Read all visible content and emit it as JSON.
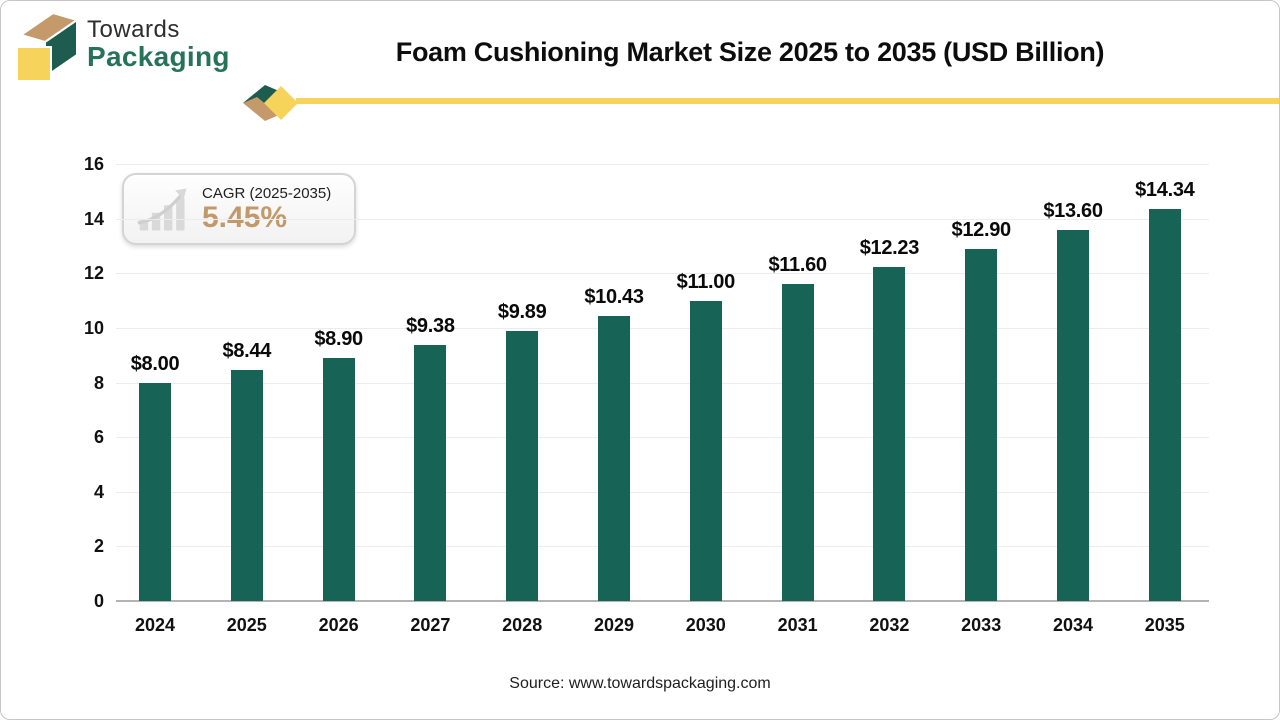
{
  "brand": {
    "line1": "Towards",
    "line2": "Packaging"
  },
  "header": {
    "title": "Foam Cushioning Market Size 2025 to 2035 (USD Billion)"
  },
  "cagr_badge": {
    "label": "CAGR (2025-2035)",
    "value": "5.45%"
  },
  "source": "Source: www.towardspackaging.com",
  "icons": {
    "logo": "cube-box-icon",
    "divider": "diamond-arrow-icon",
    "badge": "growth-bars-arrow-icon"
  },
  "colors": {
    "bar": "#176355",
    "accent_yellow": "#f6d45c",
    "brand_green": "#26735a",
    "logo_dark_green": "#1d5c4f",
    "logo_tan": "#c49a6b",
    "cagr_value": "#c2996a",
    "gridline": "#ececec",
    "axis_line": "#b3b3b3"
  },
  "chart_data": {
    "type": "bar",
    "title": "Foam Cushioning Market Size 2025 to 2035 (USD Billion)",
    "categories": [
      "2024",
      "2025",
      "2026",
      "2027",
      "2028",
      "2029",
      "2030",
      "2031",
      "2032",
      "2033",
      "2034",
      "2035"
    ],
    "values": [
      8.0,
      8.44,
      8.9,
      9.38,
      9.89,
      10.43,
      11.0,
      11.6,
      12.23,
      12.9,
      13.6,
      14.34
    ],
    "value_labels": [
      "$8.00",
      "$8.44",
      "$8.90",
      "$9.38",
      "$9.89",
      "$10.43",
      "$11.00",
      "$11.60",
      "$12.23",
      "$12.90",
      "$13.60",
      "$14.34"
    ],
    "xlabel": "",
    "ylabel": "",
    "ylim": [
      0,
      16
    ],
    "yticks": [
      0,
      2,
      4,
      6,
      8,
      10,
      12,
      14,
      16
    ],
    "grid": true,
    "legend": false,
    "bar_color": "#176355"
  }
}
